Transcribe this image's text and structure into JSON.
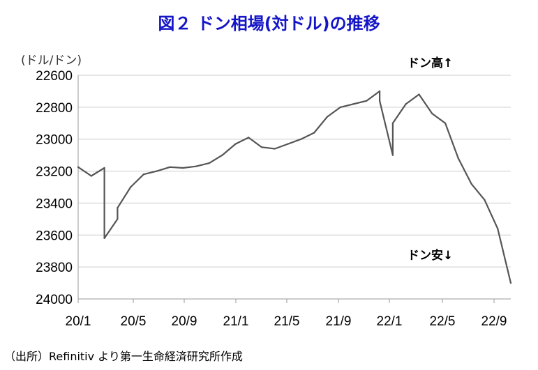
{
  "title": "図２ ドン相場(対ドル)の推移",
  "source": "（出所）Refinitiv より第一生命経済研究所作成",
  "colors": {
    "title": "#1515c8",
    "line": "#555555",
    "axis": "#cccccc"
  },
  "chart_data": {
    "type": "line",
    "title": "図２ ドン相場(対ドル)の推移",
    "ylabel": "(ドル/ドン)",
    "ylim": [
      22600,
      24000
    ],
    "y_inverted": true,
    "yticks": [
      22600,
      22800,
      23000,
      23200,
      23400,
      23600,
      23800,
      24000
    ],
    "ytick_labels": [
      "22600",
      "22800",
      "23000",
      "23200",
      "23400",
      "23600",
      "23800",
      "24000"
    ],
    "xtick_labels": [
      "20/1",
      "20/5",
      "20/9",
      "21/1",
      "21/5",
      "21/9",
      "22/1",
      "22/5",
      "22/9"
    ],
    "xlim": [
      "2020-01",
      "2022-10"
    ],
    "grid": true,
    "annotations": [
      "ドン高↑",
      "ドン安↓"
    ],
    "series": [
      {
        "x": [
          "2020-01",
          "2020-02",
          "2020-03",
          "2020-03",
          "2020-04",
          "2020-04",
          "2020-05",
          "2020-06",
          "2020-07",
          "2020-08",
          "2020-09",
          "2020-10",
          "2020-11",
          "2020-12",
          "2021-01",
          "2021-02",
          "2021-03",
          "2021-04",
          "2021-05",
          "2021-06",
          "2021-07",
          "2021-08",
          "2021-09",
          "2021-10",
          "2021-11",
          "2021-12",
          "2021-12",
          "2022-01",
          "2022-01",
          "2022-02",
          "2022-03",
          "2022-04",
          "2022-05",
          "2022-06",
          "2022-07",
          "2022-08",
          "2022-09",
          "2022-10"
        ],
        "values": [
          23175,
          23230,
          23180,
          23620,
          23500,
          23430,
          23300,
          23220,
          23200,
          23175,
          23180,
          23170,
          23150,
          23100,
          23030,
          22990,
          23050,
          23060,
          23030,
          23000,
          22960,
          22860,
          22800,
          22780,
          22760,
          22700,
          22760,
          23100,
          22900,
          22780,
          22720,
          22840,
          22900,
          23120,
          23280,
          23380,
          23560,
          23900
        ]
      }
    ]
  }
}
